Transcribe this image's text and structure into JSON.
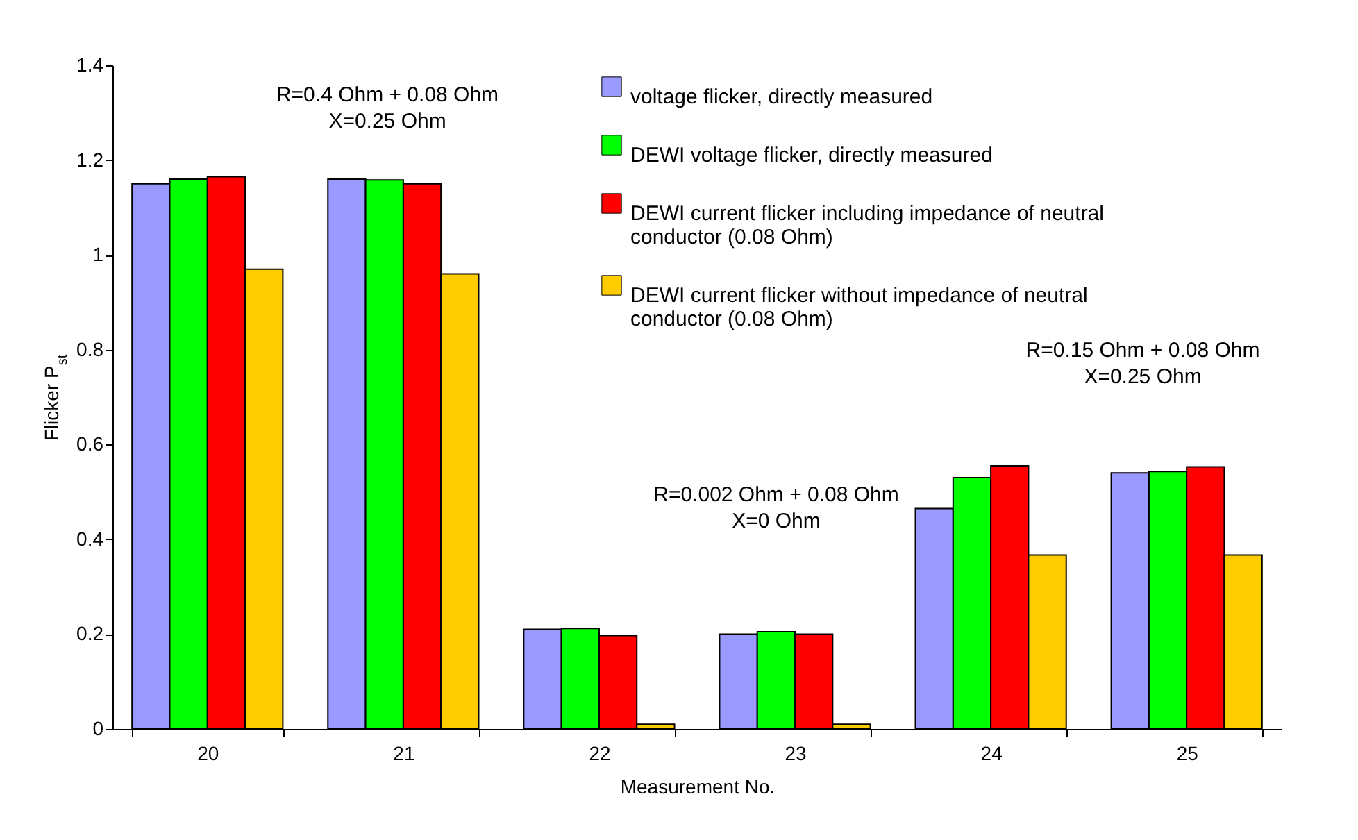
{
  "chart_data": {
    "type": "bar",
    "xlabel": "Measurement No.",
    "ylabel": "Flicker P$_{st}$",
    "categories": [
      "20",
      "21",
      "22",
      "23",
      "24",
      "25"
    ],
    "series": [
      {
        "name": "voltage flicker, directly measured",
        "color": "#9999ff",
        "values": [
          1.15,
          1.16,
          0.21,
          0.2,
          0.465,
          0.54
        ]
      },
      {
        "name": "DEWI voltage flicker, directly measured",
        "color": "#00ff00",
        "values": [
          1.16,
          1.158,
          0.212,
          0.205,
          0.53,
          0.543
        ]
      },
      {
        "name": "DEWI current flicker including impedance of neutral conductor (0.08 Ohm)",
        "color": "#ff0000",
        "values": [
          1.165,
          1.15,
          0.197,
          0.2,
          0.555,
          0.553
        ]
      },
      {
        "name": "DEWI current flicker without impedance of neutral conductor (0.08 Ohm)",
        "color": "#ffcc00",
        "values": [
          0.97,
          0.96,
          0.01,
          0.01,
          0.367,
          0.367
        ]
      }
    ],
    "ylim": [
      0,
      1.4
    ],
    "yticks": [
      0,
      0.2,
      0.4,
      0.6,
      0.8,
      1,
      1.2,
      1.4
    ],
    "grid": false,
    "legend": "top right",
    "annotations": [
      "R=0.4 Ohm + 0.08 Ohm\nX=0.25 Ohm",
      "R=0.002 Ohm + 0.08 Ohm\nX=0 Ohm",
      "R=0.15 Ohm + 0.08 Ohm\nX=0.25 Ohm"
    ]
  }
}
